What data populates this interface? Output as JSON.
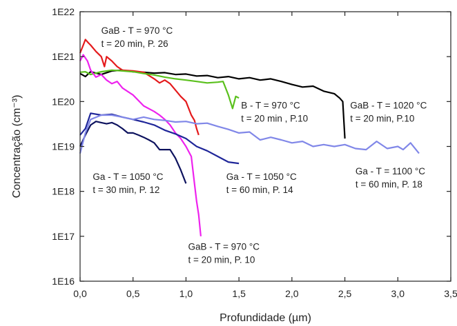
{
  "chart_data": {
    "type": "line",
    "title": "",
    "xlabel": "Profundidade (µm)",
    "ylabel": "Concentração (cm⁻³)",
    "x_range": [
      0.0,
      3.5
    ],
    "y_scale": "log",
    "y_range": [
      1e+16,
      1e+22
    ],
    "grid": false,
    "x_ticks": [
      "0,0",
      "0,5",
      "1,0",
      "1,5",
      "2,0",
      "2,5",
      "3,0",
      "3,5"
    ],
    "x_tick_values": [
      0,
      0.5,
      1.0,
      1.5,
      2.0,
      2.5,
      3.0,
      3.5
    ],
    "y_ticks": [
      "1E16",
      "1E17",
      "1E18",
      "1E19",
      "1E20",
      "1E21",
      "1E22"
    ],
    "y_tick_values": [
      1e+16,
      1e+17,
      1e+18,
      1e+19,
      1e+20,
      1e+21,
      1e+22
    ],
    "series": [
      {
        "color": "#000000",
        "points": [
          [
            0.0,
            4.2e+20
          ],
          [
            0.05,
            3.6e+20
          ],
          [
            0.1,
            4.6e+20
          ],
          [
            0.2,
            4e+20
          ],
          [
            0.3,
            4.8e+20
          ],
          [
            0.4,
            5e+20
          ],
          [
            0.5,
            4.6e+20
          ],
          [
            0.6,
            4.5e+20
          ],
          [
            0.7,
            4.3e+20
          ],
          [
            0.8,
            4.4e+20
          ],
          [
            0.9,
            4e+20
          ],
          [
            1.0,
            4.1e+20
          ],
          [
            1.1,
            3.7e+20
          ],
          [
            1.2,
            3.8e+20
          ],
          [
            1.3,
            3.4e+20
          ],
          [
            1.4,
            3.6e+20
          ],
          [
            1.5,
            3.2e+20
          ],
          [
            1.6,
            3.4e+20
          ],
          [
            1.7,
            3e+20
          ],
          [
            1.8,
            3.2e+20
          ],
          [
            1.9,
            2.8e+20
          ],
          [
            2.0,
            2.4e+20
          ],
          [
            2.1,
            2.1e+20
          ],
          [
            2.2,
            2.2e+20
          ],
          [
            2.3,
            1.7e+20
          ],
          [
            2.4,
            1.5e+20
          ],
          [
            2.45,
            1.2e+20
          ],
          [
            2.48,
            1e+20
          ],
          [
            2.5,
            1.5e+19
          ]
        ]
      },
      {
        "color": "#e41a1c",
        "points": [
          [
            0.0,
            1.2e+21
          ],
          [
            0.03,
            1.8e+21
          ],
          [
            0.05,
            2.4e+21
          ],
          [
            0.08,
            2e+21
          ],
          [
            0.1,
            1.8e+21
          ],
          [
            0.15,
            1.3e+21
          ],
          [
            0.2,
            1e+21
          ],
          [
            0.23,
            6e+20
          ],
          [
            0.25,
            1e+21
          ],
          [
            0.3,
            8e+20
          ],
          [
            0.35,
            6e+20
          ],
          [
            0.4,
            5e+20
          ],
          [
            0.5,
            4.8e+20
          ],
          [
            0.6,
            4.5e+20
          ],
          [
            0.7,
            3.2e+20
          ],
          [
            0.75,
            2.6e+20
          ],
          [
            0.8,
            3e+20
          ],
          [
            0.85,
            2.5e+20
          ],
          [
            0.9,
            1.8e+20
          ],
          [
            0.95,
            1.3e+20
          ],
          [
            1.0,
            1e+20
          ],
          [
            1.05,
            5e+19
          ],
          [
            1.08,
            3.8e+19
          ],
          [
            1.1,
            2.5e+19
          ],
          [
            1.12,
            1.8e+19
          ]
        ]
      },
      {
        "color": "#5ac01c",
        "points": [
          [
            0.0,
            4.5e+20
          ],
          [
            0.05,
            4.6e+20
          ],
          [
            0.1,
            4e+20
          ],
          [
            0.2,
            4.6e+20
          ],
          [
            0.3,
            5e+20
          ],
          [
            0.4,
            4.8e+20
          ],
          [
            0.5,
            4.6e+20
          ],
          [
            0.6,
            4.2e+20
          ],
          [
            0.7,
            3.9e+20
          ],
          [
            0.8,
            3.5e+20
          ],
          [
            0.9,
            3.2e+20
          ],
          [
            1.0,
            3e+20
          ],
          [
            1.1,
            2.8e+20
          ],
          [
            1.2,
            2.6e+20
          ],
          [
            1.3,
            2.7e+20
          ],
          [
            1.35,
            2.8e+20
          ],
          [
            1.4,
            1.4e+20
          ],
          [
            1.44,
            7e+19
          ],
          [
            1.47,
            1.3e+20
          ],
          [
            1.5,
            1.2e+20
          ]
        ]
      },
      {
        "color": "#ee22ee",
        "points": [
          [
            0.0,
            8e+20
          ],
          [
            0.03,
            1.1e+21
          ],
          [
            0.07,
            8e+20
          ],
          [
            0.1,
            5e+20
          ],
          [
            0.15,
            3.5e+20
          ],
          [
            0.2,
            4e+20
          ],
          [
            0.25,
            3e+20
          ],
          [
            0.3,
            2.5e+20
          ],
          [
            0.35,
            2.8e+20
          ],
          [
            0.4,
            2e+20
          ],
          [
            0.5,
            1.4e+20
          ],
          [
            0.6,
            8e+19
          ],
          [
            0.7,
            6e+19
          ],
          [
            0.75,
            5e+19
          ],
          [
            0.8,
            4e+19
          ],
          [
            0.85,
            3e+19
          ],
          [
            0.9,
            2e+19
          ],
          [
            0.95,
            1.5e+19
          ],
          [
            1.0,
            1e+19
          ],
          [
            1.05,
            6e+18
          ],
          [
            1.08,
            1.5e+18
          ],
          [
            1.1,
            6e+17
          ],
          [
            1.12,
            3e+17
          ],
          [
            1.14,
            1e+17
          ]
        ]
      },
      {
        "color": "#1f2699",
        "points": [
          [
            0.0,
            1.8e+19
          ],
          [
            0.05,
            2.5e+19
          ],
          [
            0.1,
            5.5e+19
          ],
          [
            0.2,
            5e+19
          ],
          [
            0.3,
            5.2e+19
          ],
          [
            0.4,
            4.5e+19
          ],
          [
            0.5,
            4e+19
          ],
          [
            0.6,
            3.5e+19
          ],
          [
            0.7,
            3e+19
          ],
          [
            0.8,
            2.3e+19
          ],
          [
            0.9,
            1.9e+19
          ],
          [
            1.0,
            1.5e+19
          ],
          [
            1.1,
            1e+19
          ],
          [
            1.2,
            8e+18
          ],
          [
            1.3,
            6e+18
          ],
          [
            1.4,
            4.5e+18
          ],
          [
            1.5,
            4.2e+18
          ]
        ]
      },
      {
        "color": "#0d125e",
        "points": [
          [
            0.0,
            1e+19
          ],
          [
            0.05,
            1.8e+19
          ],
          [
            0.1,
            3e+19
          ],
          [
            0.15,
            3.6e+19
          ],
          [
            0.2,
            3.4e+19
          ],
          [
            0.25,
            3.2e+19
          ],
          [
            0.3,
            3.4e+19
          ],
          [
            0.35,
            3e+19
          ],
          [
            0.4,
            2.5e+19
          ],
          [
            0.45,
            2e+19
          ],
          [
            0.5,
            2e+19
          ],
          [
            0.55,
            1.8e+19
          ],
          [
            0.6,
            1.6e+19
          ],
          [
            0.65,
            1.4e+19
          ],
          [
            0.7,
            1.2e+19
          ],
          [
            0.75,
            8.5e+18
          ],
          [
            0.8,
            8.5e+18
          ],
          [
            0.85,
            8.5e+18
          ],
          [
            0.9,
            5.5e+18
          ],
          [
            0.95,
            3e+18
          ],
          [
            1.0,
            1.5e+18
          ]
        ]
      },
      {
        "color": "#8087e8",
        "points": [
          [
            0.0,
            7e+18
          ],
          [
            0.05,
            2e+19
          ],
          [
            0.1,
            4e+19
          ],
          [
            0.2,
            5e+19
          ],
          [
            0.3,
            5e+19
          ],
          [
            0.4,
            4.5e+19
          ],
          [
            0.5,
            4e+19
          ],
          [
            0.6,
            4.5e+19
          ],
          [
            0.7,
            4e+19
          ],
          [
            0.8,
            3.8e+19
          ],
          [
            0.9,
            3.5e+19
          ],
          [
            1.0,
            3.6e+19
          ],
          [
            1.1,
            3.2e+19
          ],
          [
            1.2,
            3.3e+19
          ],
          [
            1.3,
            2.8e+19
          ],
          [
            1.4,
            2.4e+19
          ],
          [
            1.5,
            2e+19
          ],
          [
            1.6,
            2.1e+19
          ],
          [
            1.7,
            1.4e+19
          ],
          [
            1.8,
            1.6e+19
          ],
          [
            1.9,
            1.4e+19
          ],
          [
            2.0,
            1.2e+19
          ],
          [
            2.1,
            1.3e+19
          ],
          [
            2.2,
            1e+19
          ],
          [
            2.3,
            1.1e+19
          ],
          [
            2.4,
            1e+19
          ],
          [
            2.5,
            1.1e+19
          ],
          [
            2.6,
            9e+18
          ],
          [
            2.7,
            8.5e+18
          ],
          [
            2.8,
            1.3e+19
          ],
          [
            2.9,
            9e+18
          ],
          [
            3.0,
            1e+19
          ],
          [
            3.05,
            8.5e+18
          ],
          [
            3.12,
            1.2e+19
          ],
          [
            3.2,
            7e+18
          ]
        ]
      }
    ],
    "annotations": [
      {
        "lines": [
          "GaB - T = 970 °C",
          "t = 20 min, P. 26"
        ],
        "x": 0.2,
        "y": 3.2e+21
      },
      {
        "lines": [
          "B - T = 970 °C",
          "t = 20 min , P.10"
        ],
        "x": 1.52,
        "y": 7e+19
      },
      {
        "lines": [
          "GaB - T = 1020 °C",
          "t = 20 min, P.10"
        ],
        "x": 2.55,
        "y": 7e+19
      },
      {
        "lines": [
          "Ga - T = 1050 °C",
          "t = 30 min, P. 12"
        ],
        "x": 0.12,
        "y": 1.8e+18
      },
      {
        "lines": [
          "Ga - T = 1050 °C",
          "t = 60 min, P. 14"
        ],
        "x": 1.38,
        "y": 1.8e+18
      },
      {
        "lines": [
          "Ga - T = 1100 °C",
          "t = 60 min, P. 18"
        ],
        "x": 2.6,
        "y": 2.4e+18
      },
      {
        "lines": [
          "GaB - T = 970 °C",
          "t = 20 min, P. 10"
        ],
        "x": 1.02,
        "y": 5e+16
      }
    ]
  }
}
